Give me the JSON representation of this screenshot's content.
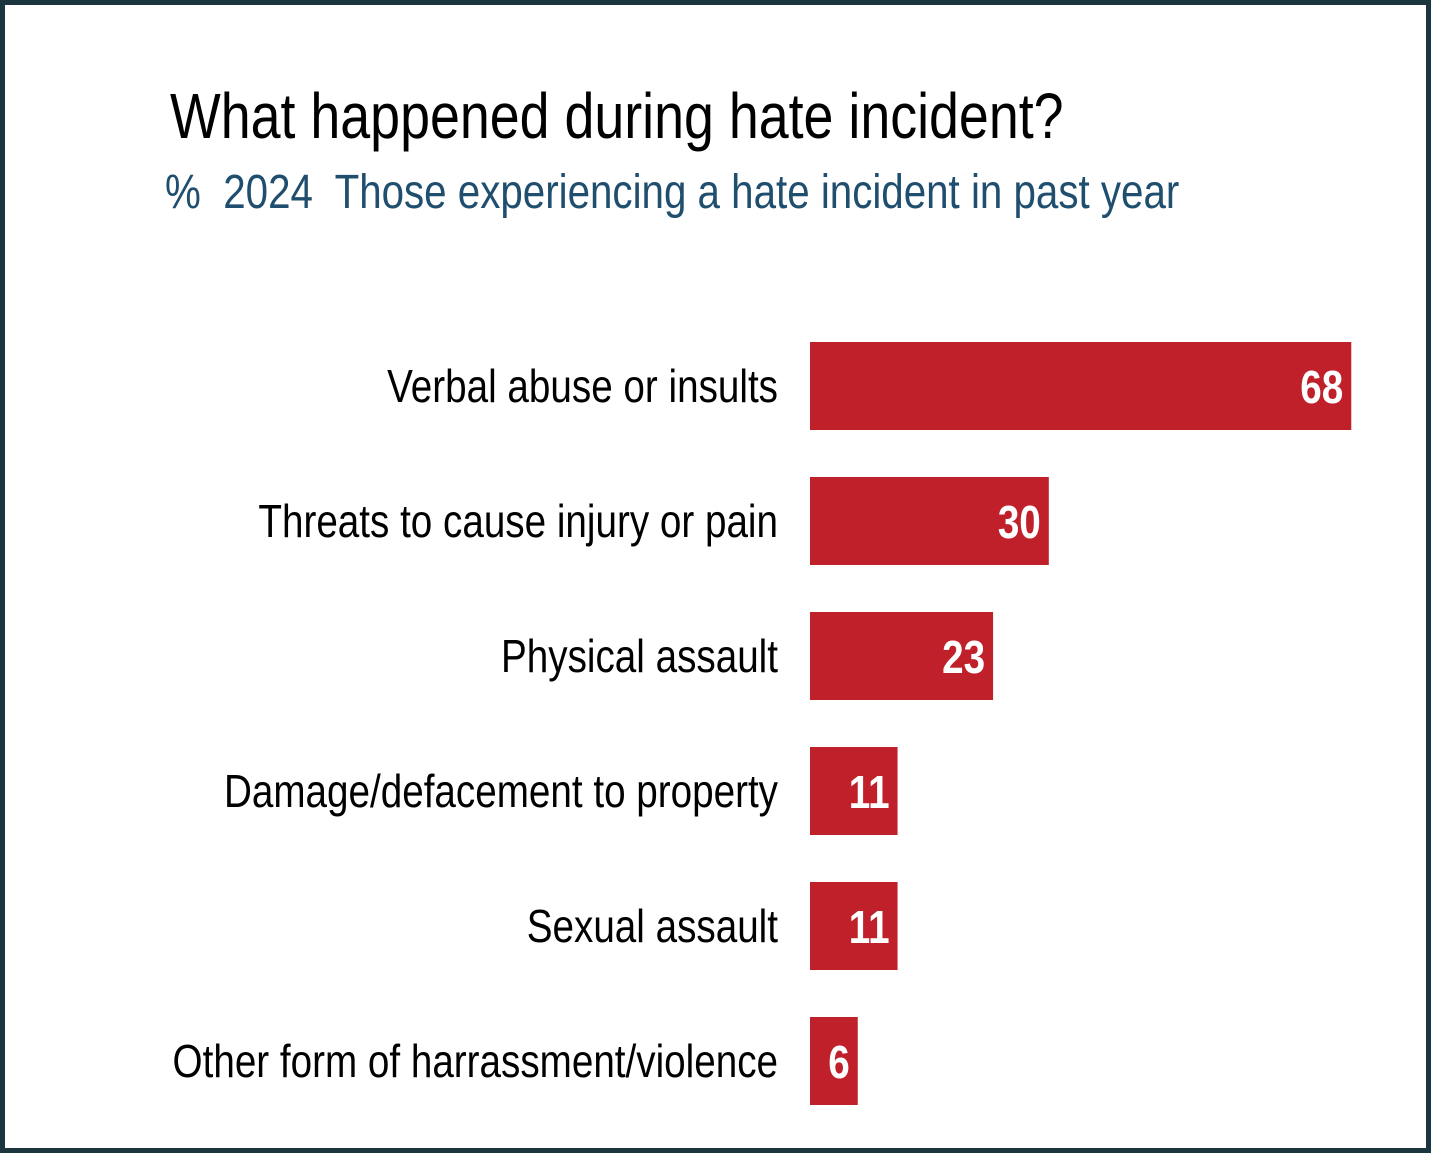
{
  "chart_data": {
    "type": "bar",
    "orientation": "horizontal",
    "title": "What happened during hate incident?",
    "subtitle": "%  2024  Those experiencing a hate incident in past year",
    "categories": [
      "Verbal abuse or insults",
      "Threats to cause injury or pain",
      "Physical assault",
      "Damage/defacement to property",
      "Sexual assault",
      "Other form of harrassment/violence"
    ],
    "values": [
      68,
      30,
      23,
      11,
      11,
      6
    ],
    "color": "#c0202a"
  }
}
